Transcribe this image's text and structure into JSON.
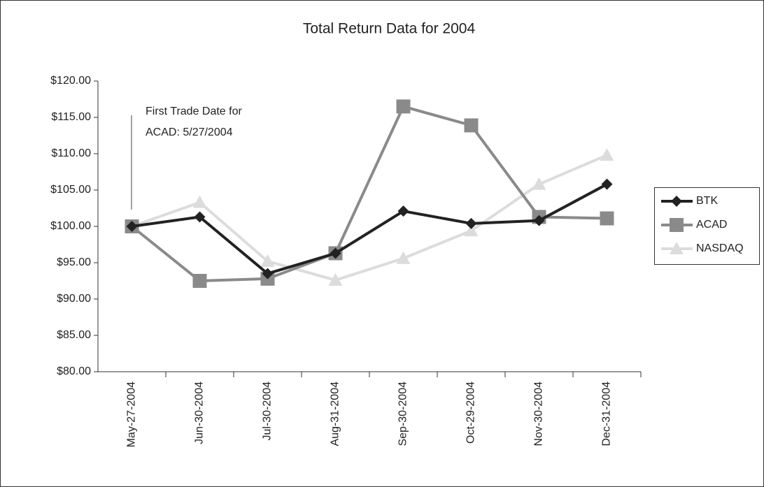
{
  "chart_data": {
    "type": "line",
    "title": "Total Return Data for 2004",
    "annotation": [
      "First Trade Date for",
      "ACAD: 5/27/2004"
    ],
    "categories": [
      "May-27-2004",
      "Jun-30-2004",
      "Jul-30-2004",
      "Aug-31-2004",
      "Sep-30-2004",
      "Oct-29-2004",
      "Nov-30-2004",
      "Dec-31-2004"
    ],
    "series": [
      {
        "name": "BTK",
        "color": "#222222",
        "marker": "diamond",
        "values": [
          100,
          101.3,
          93.5,
          96.3,
          102.1,
          100.4,
          100.8,
          105.8
        ]
      },
      {
        "name": "ACAD",
        "color": "#8a8a8a",
        "marker": "square",
        "values": [
          100,
          92.5,
          92.8,
          96.3,
          116.5,
          113.9,
          101.3,
          101.1
        ]
      },
      {
        "name": "NASDAQ",
        "color": "#dcdcdc",
        "marker": "triangle",
        "values": [
          100,
          103.3,
          95.2,
          92.6,
          95.6,
          99.4,
          105.8,
          109.8
        ]
      }
    ],
    "ylim": [
      80,
      120
    ],
    "yticks": [
      {
        "value": 80,
        "label": "$80.00"
      },
      {
        "value": 85,
        "label": "$85.00"
      },
      {
        "value": 90,
        "label": "$90.00"
      },
      {
        "value": 95,
        "label": "$95.00"
      },
      {
        "value": 100,
        "label": "$100.00"
      },
      {
        "value": 105,
        "label": "$105.00"
      },
      {
        "value": 110,
        "label": "$110.00"
      },
      {
        "value": 115,
        "label": "$115.00"
      },
      {
        "value": 120,
        "label": "$120.00"
      }
    ],
    "grid": false,
    "legend": "right"
  }
}
